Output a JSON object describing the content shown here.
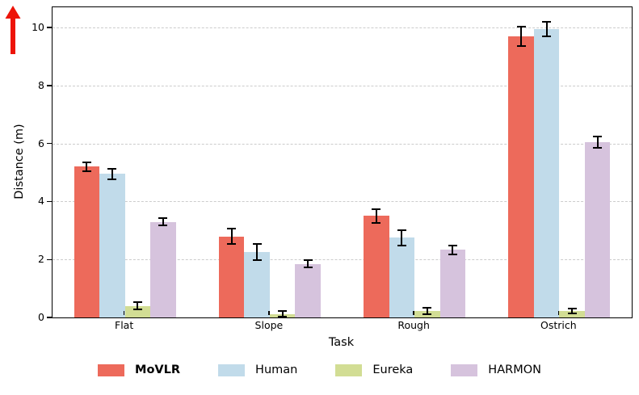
{
  "figure": {
    "arrow_color": "#ED1408",
    "background": "#ffffff",
    "grid_color": "#cccccc",
    "error_bar_color": "#000000"
  },
  "chart_data": {
    "type": "bar",
    "title": "",
    "xlabel": "Task",
    "ylabel": "Distance (m)",
    "categories": [
      "Flat",
      "Slope",
      "Rough",
      "Ostrich"
    ],
    "series": [
      {
        "name": "MoVLR",
        "color": "#ED6A5B",
        "emphasis": "bold",
        "values": [
          5.2,
          2.8,
          3.5,
          9.7
        ],
        "errors": [
          0.16,
          0.26,
          0.24,
          0.33
        ]
      },
      {
        "name": "Human",
        "color": "#C1DBEA",
        "emphasis": "normal",
        "values": [
          4.95,
          2.25,
          2.75,
          9.95
        ],
        "errors": [
          0.18,
          0.28,
          0.26,
          0.25
        ]
      },
      {
        "name": "Eureka",
        "color": "#D2DD94",
        "emphasis": "normal",
        "values": [
          0.4,
          0.12,
          0.22,
          0.22
        ],
        "errors": [
          0.12,
          0.1,
          0.12,
          0.08
        ]
      },
      {
        "name": "HARMON",
        "color": "#D6C3DD",
        "emphasis": "normal",
        "values": [
          3.3,
          1.85,
          2.33,
          6.05
        ],
        "errors": [
          0.12,
          0.13,
          0.16,
          0.2
        ]
      }
    ],
    "yticks": [
      0,
      2,
      4,
      6,
      8,
      10
    ],
    "ylim": [
      0,
      10.7
    ],
    "grid": "horizontal-dashed",
    "error_bars": true,
    "legend_position": "bottom-center"
  }
}
